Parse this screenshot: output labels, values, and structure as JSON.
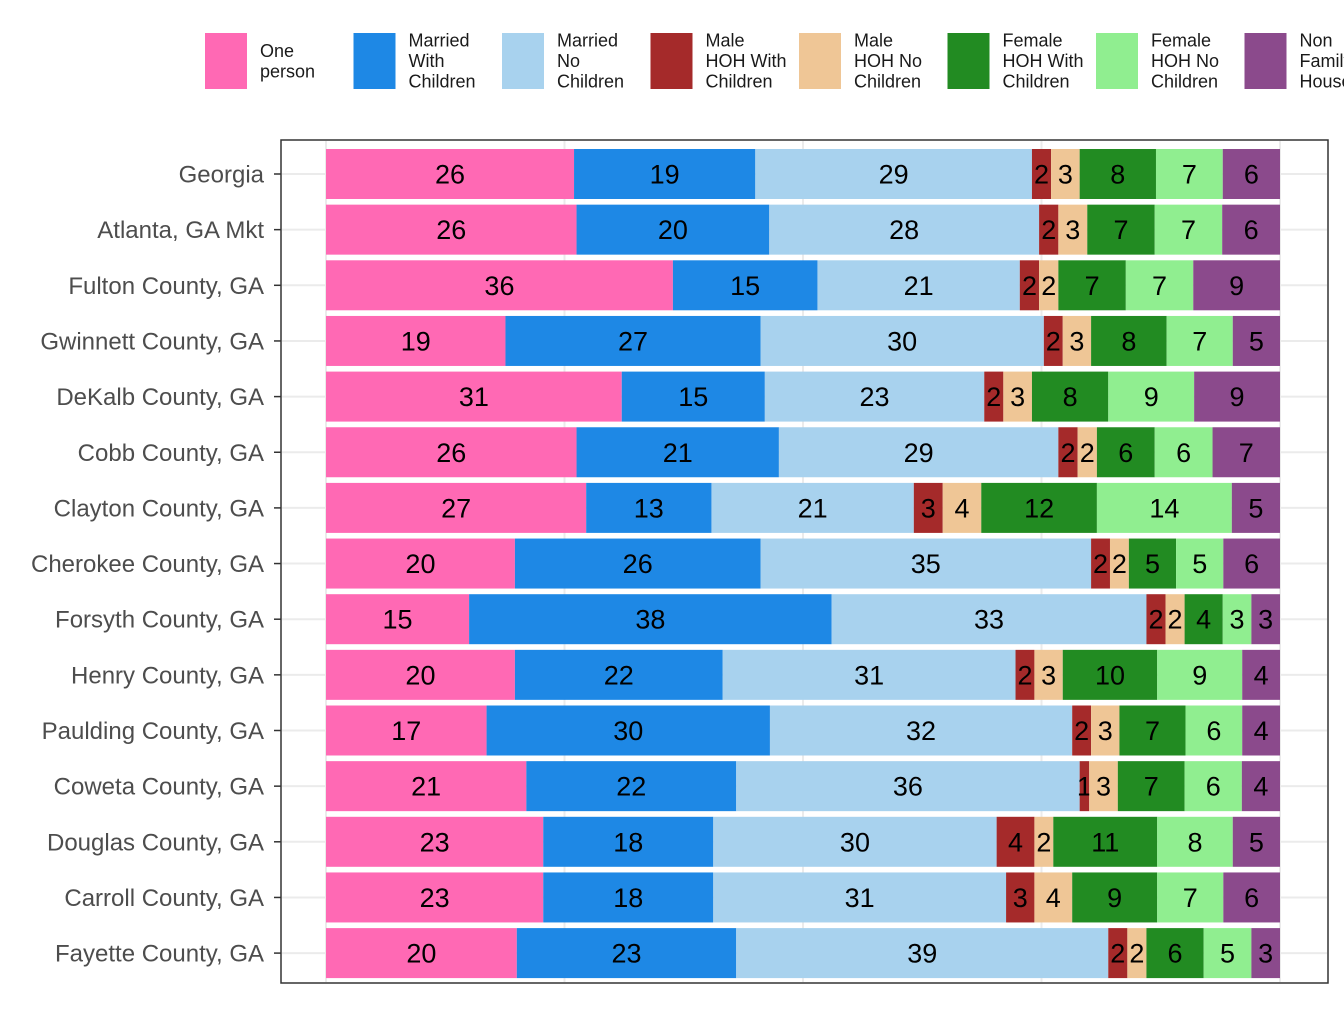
{
  "chart_data": {
    "type": "bar",
    "orientation": "horizontal",
    "stacked": true,
    "normalized": true,
    "title": "",
    "xlabel": "",
    "ylabel": "",
    "xlim": [
      0,
      100
    ],
    "grid": true,
    "legend_position": "top",
    "categories": [
      "Georgia",
      "Atlanta, GA Mkt",
      "Fulton County, GA",
      "Gwinnett County, GA",
      "DeKalb County, GA",
      "Cobb County, GA",
      "Clayton County, GA",
      "Cherokee County, GA",
      "Forsyth County, GA",
      "Henry County, GA",
      "Paulding County, GA",
      "Coweta County, GA",
      "Douglas County, GA",
      "Carroll County, GA",
      "Fayette County, GA"
    ],
    "series": [
      {
        "name": "One person",
        "legend_lines": [
          "One",
          "person"
        ],
        "color": "#ff69b4",
        "values": [
          26,
          26,
          36,
          19,
          31,
          26,
          27,
          20,
          15,
          20,
          17,
          21,
          23,
          23,
          20
        ]
      },
      {
        "name": "Married With Children",
        "legend_lines": [
          "Married",
          "With",
          "Children"
        ],
        "color": "#1e88e5",
        "values": [
          19,
          20,
          15,
          27,
          15,
          21,
          13,
          26,
          38,
          22,
          30,
          22,
          18,
          18,
          23
        ]
      },
      {
        "name": "Married No Children",
        "legend_lines": [
          "Married",
          "No",
          "Children"
        ],
        "color": "#a8d2ee",
        "values": [
          29,
          28,
          21,
          30,
          23,
          29,
          21,
          35,
          33,
          31,
          32,
          36,
          30,
          31,
          39
        ]
      },
      {
        "name": "Male HOH With Children",
        "legend_lines": [
          "Male",
          "HOH With",
          "Children"
        ],
        "color": "#a52a2a",
        "values": [
          2,
          2,
          2,
          2,
          2,
          2,
          3,
          2,
          2,
          2,
          2,
          1,
          4,
          3,
          2
        ]
      },
      {
        "name": "Male HOH No Children",
        "legend_lines": [
          "Male",
          "HOH No",
          "Children"
        ],
        "color": "#efc696",
        "values": [
          3,
          3,
          2,
          3,
          3,
          2,
          4,
          2,
          2,
          3,
          3,
          3,
          2,
          4,
          2
        ]
      },
      {
        "name": "Female HOH With Children",
        "legend_lines": [
          "Female",
          "HOH With",
          "Children"
        ],
        "color": "#228b22",
        "values": [
          8,
          7,
          7,
          8,
          8,
          6,
          12,
          5,
          4,
          10,
          7,
          7,
          11,
          9,
          6
        ]
      },
      {
        "name": "Female HOH No Children",
        "legend_lines": [
          "Female",
          "HOH No",
          "Children"
        ],
        "color": "#90ee90",
        "values": [
          7,
          7,
          7,
          7,
          9,
          6,
          14,
          5,
          3,
          9,
          6,
          6,
          8,
          7,
          5
        ]
      },
      {
        "name": "Non Family Household",
        "legend_lines": [
          "Non",
          "Family",
          "Household"
        ],
        "color": "#8b4a8c",
        "values": [
          6,
          6,
          9,
          5,
          9,
          7,
          5,
          6,
          3,
          4,
          4,
          4,
          5,
          6,
          3
        ]
      }
    ]
  }
}
